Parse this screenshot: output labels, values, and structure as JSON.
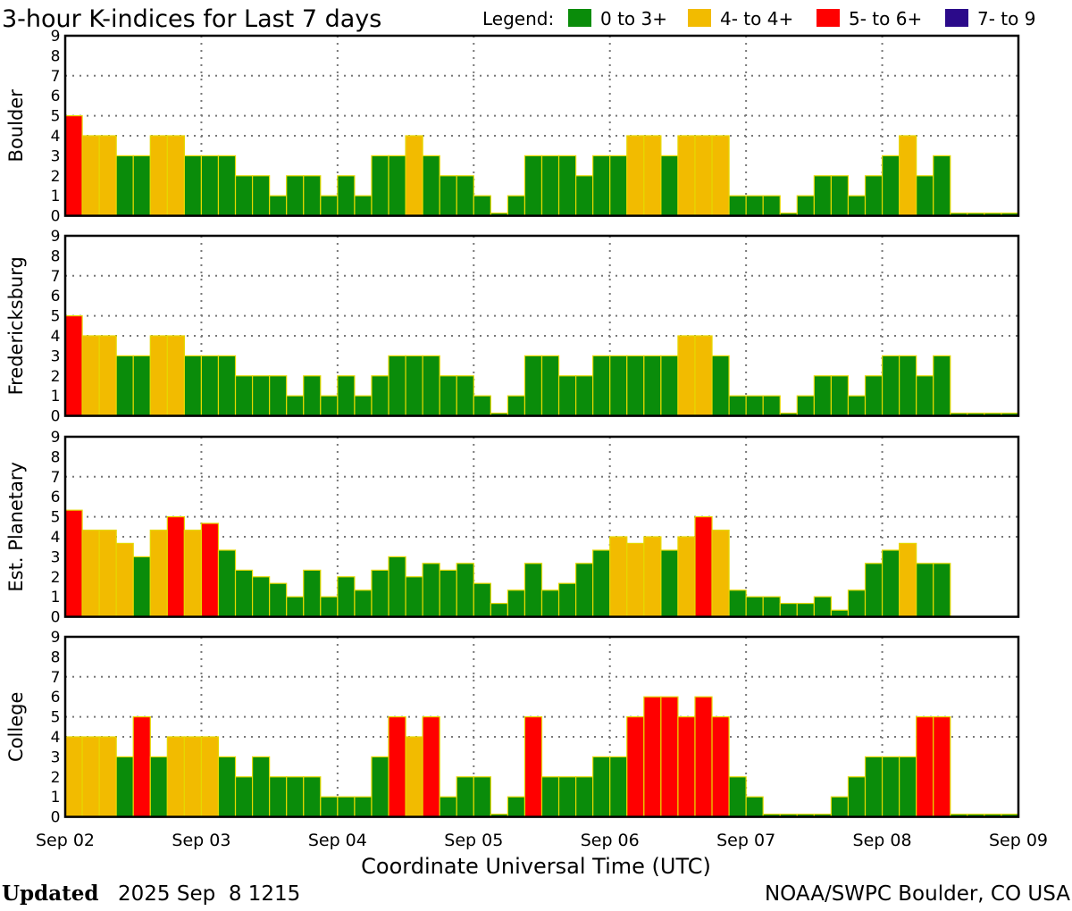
{
  "chart_data": {
    "type": "bar",
    "title": "3-hour K-indices for Last 7 days",
    "legend": {
      "label": "Legend:",
      "placement": "top-right",
      "entries": [
        {
          "label": "0 to 3+",
          "color": "#0a8c0a"
        },
        {
          "label": "4- to 4+",
          "color": "#f2bb00"
        },
        {
          "label": "5- to 6+",
          "color": "#ff0000"
        },
        {
          "label": "7- to 9",
          "color": "#2b0a8a"
        }
      ]
    },
    "xlabel": "Coordinate Universal Time (UTC)",
    "x_ticks": [
      "Sep 02",
      "Sep 03",
      "Sep 04",
      "Sep 05",
      "Sep 06",
      "Sep 07",
      "Sep 08",
      "Sep 09"
    ],
    "y_ticks": [
      "0",
      "1",
      "2",
      "3",
      "4",
      "5",
      "6",
      "7",
      "8",
      "9"
    ],
    "ylim": [
      0,
      9
    ],
    "grid": {
      "horizontal_at": [
        4,
        5,
        7
      ],
      "vertical": "daily",
      "style": "dotted"
    },
    "bars_per_day": 8,
    "series": [
      {
        "name": "Boulder",
        "values": [
          5,
          4,
          4,
          3,
          3,
          4,
          4,
          3,
          3,
          3,
          2,
          2,
          1,
          2,
          2,
          1,
          2,
          1,
          3,
          3,
          4,
          3,
          2,
          2,
          1,
          0,
          1,
          3,
          3,
          3,
          2,
          3,
          3,
          4,
          4,
          3,
          4,
          4,
          4,
          1,
          1,
          1,
          0,
          1,
          2,
          2,
          1,
          2,
          3,
          4,
          2,
          3,
          0,
          0,
          0,
          0
        ]
      },
      {
        "name": "Fredericksburg",
        "values": [
          5,
          4,
          4,
          3,
          3,
          4,
          4,
          3,
          3,
          3,
          2,
          2,
          2,
          1,
          2,
          1,
          2,
          1,
          2,
          3,
          3,
          3,
          2,
          2,
          1,
          0,
          1,
          3,
          3,
          2,
          2,
          3,
          3,
          3,
          3,
          3,
          4,
          4,
          3,
          1,
          1,
          1,
          0,
          1,
          2,
          2,
          1,
          2,
          3,
          3,
          2,
          3,
          0,
          0,
          0,
          0
        ]
      },
      {
        "name": "Est. Planetary",
        "values": [
          5.33,
          4.33,
          4.33,
          3.67,
          3.0,
          4.33,
          5.0,
          4.33,
          4.67,
          3.33,
          2.33,
          2.0,
          1.67,
          1.0,
          2.33,
          1.0,
          2.0,
          1.33,
          2.33,
          3.0,
          2.0,
          2.67,
          2.33,
          2.67,
          1.67,
          0.67,
          1.33,
          2.67,
          1.33,
          1.67,
          2.67,
          3.33,
          4.0,
          3.67,
          4.0,
          3.33,
          4.0,
          5.0,
          4.33,
          1.33,
          1.0,
          1.0,
          0.67,
          0.67,
          1.0,
          0.33,
          1.33,
          2.67,
          3.33,
          3.67,
          2.67,
          2.67,
          null,
          null,
          null,
          null
        ]
      },
      {
        "name": "College",
        "values": [
          4,
          4,
          4,
          3,
          5,
          3,
          4,
          4,
          4,
          3,
          2,
          3,
          2,
          2,
          2,
          1,
          1,
          1,
          3,
          5,
          4,
          5,
          1,
          2,
          2,
          0,
          1,
          5,
          2,
          2,
          2,
          3,
          3,
          5,
          6,
          6,
          5,
          6,
          5,
          2,
          1,
          0,
          0,
          0,
          0,
          1,
          2,
          3,
          3,
          3,
          5,
          5,
          0,
          0,
          0,
          0
        ]
      }
    ]
  },
  "footer": {
    "updated_label": "Updated",
    "updated_value": "2025 Sep  8 1215",
    "source": "NOAA/SWPC Boulder, CO USA"
  }
}
